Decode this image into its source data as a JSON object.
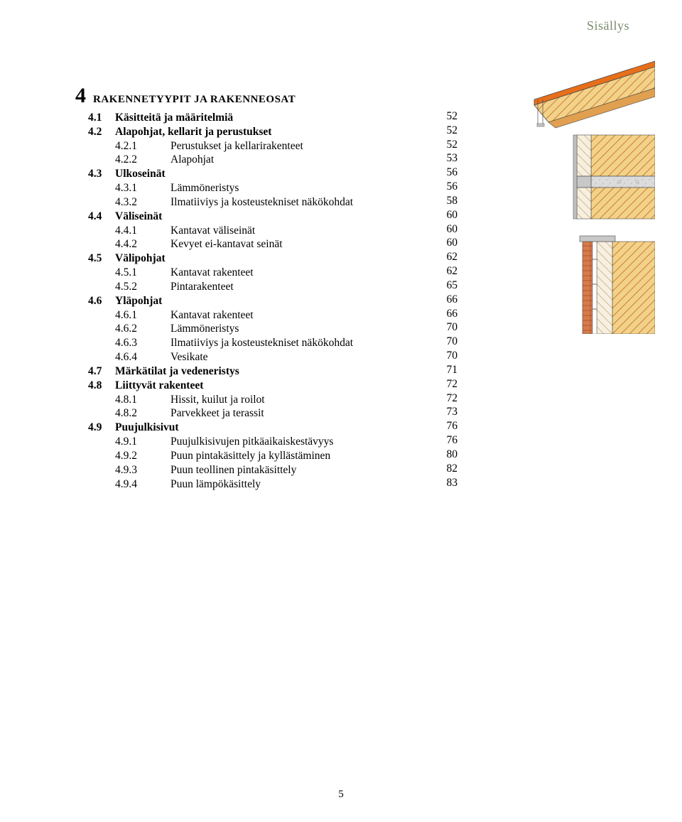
{
  "header": "Sisällys",
  "chapter": {
    "num": "4",
    "title": "RAKENNETYYPIT JA RAKENNEOSAT"
  },
  "toc": [
    {
      "level": 1,
      "num": "4.1",
      "label": "Käsitteitä ja määritelmiä",
      "page": "52"
    },
    {
      "level": 1,
      "num": "4.2",
      "label": "Alapohjat, kellarit ja perustukset",
      "page": "52"
    },
    {
      "level": 2,
      "num": "4.2.1",
      "label": "Perustukset ja kellarirakenteet",
      "page": "52"
    },
    {
      "level": 2,
      "num": "4.2.2",
      "label": "Alapohjat",
      "page": "53"
    },
    {
      "level": 1,
      "num": "4.3",
      "label": "Ulkoseinät",
      "page": "56"
    },
    {
      "level": 2,
      "num": "4.3.1",
      "label": "Lämmöneristys",
      "page": "56"
    },
    {
      "level": 2,
      "num": "4.3.2",
      "label": "Ilmatiiviys ja kosteustekniset näkökohdat",
      "page": "58"
    },
    {
      "level": 1,
      "num": "4.4",
      "label": "Väliseinät",
      "page": "60"
    },
    {
      "level": 2,
      "num": "4.4.1",
      "label": "Kantavat väliseinät",
      "page": "60"
    },
    {
      "level": 2,
      "num": "4.4.2",
      "label": "Kevyet ei-kantavat seinät",
      "page": "60"
    },
    {
      "level": 1,
      "num": "4.5",
      "label": "Välipohjat",
      "page": "62"
    },
    {
      "level": 2,
      "num": "4.5.1",
      "label": "Kantavat rakenteet",
      "page": "62"
    },
    {
      "level": 2,
      "num": "4.5.2",
      "label": "Pintarakenteet",
      "page": "65"
    },
    {
      "level": 1,
      "num": "4.6",
      "label": "Yläpohjat",
      "page": "66"
    },
    {
      "level": 2,
      "num": "4.6.1",
      "label": "Kantavat rakenteet",
      "page": "66"
    },
    {
      "level": 2,
      "num": "4.6.2",
      "label": "Lämmöneristys",
      "page": "70"
    },
    {
      "level": 2,
      "num": "4.6.3",
      "label": "Ilmatiiviys ja kosteustekniset näkökohdat",
      "page": "70"
    },
    {
      "level": 2,
      "num": "4.6.4",
      "label": "Vesikate",
      "page": "70"
    },
    {
      "level": 1,
      "num": "4.7",
      "label": "Märkätilat ja vedeneristys",
      "page": "71"
    },
    {
      "level": 1,
      "num": "4.8",
      "label": "Liittyvät rakenteet",
      "page": "72"
    },
    {
      "level": 2,
      "num": "4.8.1",
      "label": "Hissit, kuilut ja roilot",
      "page": "72"
    },
    {
      "level": 2,
      "num": "4.8.2",
      "label": "Parvekkeet ja terassit",
      "page": "73"
    },
    {
      "level": 1,
      "num": "4.9",
      "label": "Puujulkisivut",
      "page": "76"
    },
    {
      "level": 2,
      "num": "4.9.1",
      "label": "Puujulkisivujen pitkäaikaiskestävyys",
      "page": "76"
    },
    {
      "level": 2,
      "num": "4.9.2",
      "label": "Puun pintakäsittely ja kyllästäminen",
      "page": "80"
    },
    {
      "level": 2,
      "num": "4.9.3",
      "label": "Puun teollinen pintakäsittely",
      "page": "82"
    },
    {
      "level": 2,
      "num": "4.9.4",
      "label": "Puun lämpökäsittely",
      "page": "83"
    }
  ],
  "pageNumber": "5",
  "illustration": {
    "roof_color": "#e86f1a",
    "beam_color": "#e0a050",
    "insulation_color": "#f2d28a",
    "hatch_color": "#d08030",
    "outline_color": "#4a4a4a",
    "concrete_color": "#c8c8c8",
    "inner_panel_color": "#f6efe2",
    "brick_color": "#d97a4a",
    "background": "#ffffff"
  }
}
